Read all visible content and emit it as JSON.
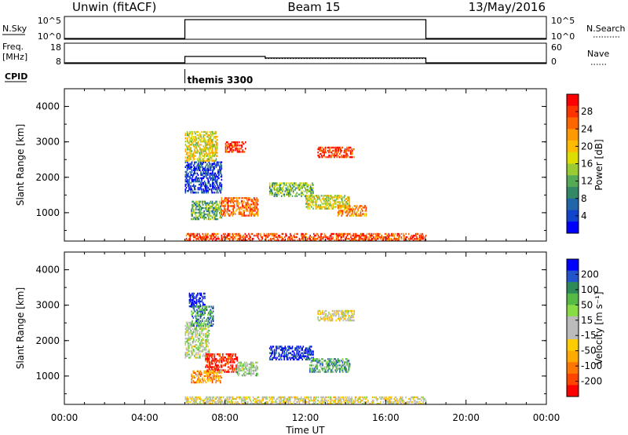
{
  "header": {
    "station": "Unwin (fitACF)",
    "beam": "Beam 15",
    "date": "13/May/2016"
  },
  "status_panel": {
    "nsky_label": "N.Sky",
    "nsky_ticks": [
      "10^5",
      "10^0"
    ],
    "nsearch_label": "N.Search",
    "nsearch_ticks": [
      "10^5",
      "10^0"
    ],
    "freq_label": "Freq.",
    "freq_unit": "[MHz]",
    "freq_ticks": [
      "18",
      "8"
    ],
    "nave_label": "Nave",
    "nave_ticks": [
      "60",
      "0"
    ],
    "cpid_label": "CPID",
    "cpid_value": "themis 3300",
    "operation_window_hours": [
      6,
      18
    ],
    "freq_value_mhz": 11.5,
    "nave_value_early": 20,
    "nave_value_late": 15,
    "nave_change_hour": 10
  },
  "colorbars": {
    "power": {
      "label": "Power [dB]",
      "ticks": [
        "28",
        "24",
        "20",
        "16",
        "12",
        "8",
        "4"
      ],
      "colors": [
        "#ff0000",
        "#ff3300",
        "#ff6600",
        "#ff9900",
        "#ffbb00",
        "#dddd00",
        "#99cc33",
        "#55aa55",
        "#338866",
        "#2266aa",
        "#1144cc",
        "#0000ff"
      ]
    },
    "velocity": {
      "label": "Velocity [m s⁻¹]",
      "ticks": [
        "200",
        "100",
        "50",
        "15",
        "-15",
        "-50",
        "-100",
        "-200"
      ],
      "colors": [
        "#0000ff",
        "#2255cc",
        "#2e8b57",
        "#55bb44",
        "#88dd44",
        "#bbbbbb",
        "#bbbbbb",
        "#ffcc00",
        "#ffaa00",
        "#ff7700",
        "#ff4400",
        "#ff0000"
      ]
    }
  },
  "chart_data": [
    {
      "type": "heatmap",
      "name": "power",
      "xlabel": "",
      "ylabel": "Slant Range [km]",
      "ylim": [
        200,
        4500
      ],
      "xlim": [
        0,
        24
      ],
      "yticks": [
        "1000",
        "2000",
        "3000",
        "4000"
      ],
      "regions": [
        {
          "t0": 6.0,
          "t1": 7.8,
          "r0": 1550,
          "r1": 2450,
          "c": 0.88
        },
        {
          "t0": 6.0,
          "t1": 7.6,
          "r0": 2450,
          "r1": 3300,
          "c": 0.45
        },
        {
          "t0": 6.3,
          "t1": 7.8,
          "r0": 800,
          "r1": 1300,
          "c": 0.62
        },
        {
          "t0": 7.8,
          "t1": 9.6,
          "r0": 900,
          "r1": 1400,
          "c": 0.22
        },
        {
          "t0": 8.0,
          "t1": 9.0,
          "r0": 2700,
          "r1": 3000,
          "c": 0.12
        },
        {
          "t0": 10.2,
          "t1": 12.4,
          "r0": 1450,
          "r1": 1850,
          "c": 0.6
        },
        {
          "t0": 12.0,
          "t1": 14.2,
          "r0": 1100,
          "r1": 1500,
          "c": 0.48
        },
        {
          "t0": 13.6,
          "t1": 15.0,
          "r0": 900,
          "r1": 1200,
          "c": 0.28
        },
        {
          "t0": 12.6,
          "t1": 14.4,
          "r0": 2550,
          "r1": 2850,
          "c": 0.1
        },
        {
          "t0": 6.0,
          "t1": 18.0,
          "r0": 200,
          "r1": 420,
          "c": 0.15
        }
      ]
    },
    {
      "type": "heatmap",
      "name": "velocity",
      "xlabel": "Time UT",
      "ylabel": "Slant Range [km]",
      "ylim": [
        200,
        4500
      ],
      "xlim": [
        0,
        24
      ],
      "xticks": [
        "00:00",
        "04:00",
        "08:00",
        "12:00",
        "16:00",
        "20:00",
        "00:00"
      ],
      "yticks": [
        "1000",
        "2000",
        "3000",
        "4000"
      ],
      "regions": [
        {
          "t0": 6.0,
          "t1": 7.2,
          "r0": 1500,
          "r1": 2500,
          "c": 0.45
        },
        {
          "t0": 6.2,
          "t1": 7.0,
          "r0": 2950,
          "r1": 3350,
          "c": 0.02
        },
        {
          "t0": 6.3,
          "t1": 7.4,
          "r0": 2400,
          "r1": 2950,
          "c": 0.22
        },
        {
          "t0": 7.0,
          "t1": 8.6,
          "r0": 1100,
          "r1": 1600,
          "c": 0.95
        },
        {
          "t0": 6.3,
          "t1": 7.8,
          "r0": 800,
          "r1": 1150,
          "c": 0.72
        },
        {
          "t0": 8.5,
          "t1": 9.6,
          "r0": 1000,
          "r1": 1400,
          "c": 0.42
        },
        {
          "t0": 10.2,
          "t1": 12.4,
          "r0": 1450,
          "r1": 1850,
          "c": 0.05
        },
        {
          "t0": 12.2,
          "t1": 14.2,
          "r0": 1100,
          "r1": 1500,
          "c": 0.28
        },
        {
          "t0": 12.6,
          "t1": 14.4,
          "r0": 2550,
          "r1": 2850,
          "c": 0.55
        },
        {
          "t0": 6.0,
          "t1": 18.0,
          "r0": 200,
          "r1": 420,
          "c": 0.55
        }
      ]
    }
  ]
}
